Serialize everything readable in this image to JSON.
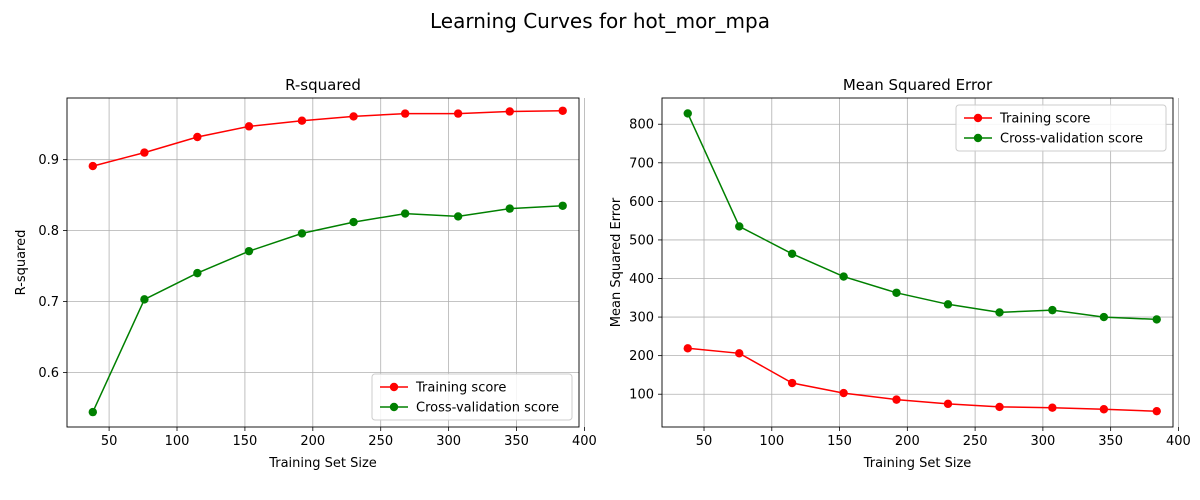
{
  "figure": {
    "title": "Learning Curves for hot_mor_mpa"
  },
  "chart_data": [
    {
      "type": "line",
      "title": "R-squared",
      "xlabel": "Training Set Size",
      "ylabel": "R-squared",
      "xlim": [
        19,
        396
      ],
      "ylim": [
        0.523,
        0.987
      ],
      "xticks": [
        50,
        100,
        150,
        200,
        250,
        300,
        350,
        400
      ],
      "yticks": [
        0.6,
        0.7,
        0.8,
        0.9
      ],
      "ytick_labels": [
        "0.6",
        "0.7",
        "0.8",
        "0.9"
      ],
      "grid": true,
      "legend_position": "lower-right",
      "x": [
        38,
        76,
        115,
        153,
        192,
        230,
        268,
        307,
        345,
        384
      ],
      "series": [
        {
          "name": "Training score",
          "color": "#ff0000",
          "values": [
            0.891,
            0.91,
            0.932,
            0.947,
            0.955,
            0.961,
            0.965,
            0.965,
            0.968,
            0.969
          ]
        },
        {
          "name": "Cross-validation score",
          "color": "#008000",
          "values": [
            0.544,
            0.703,
            0.74,
            0.771,
            0.796,
            0.812,
            0.824,
            0.82,
            0.831,
            0.835
          ]
        }
      ]
    },
    {
      "type": "line",
      "title": "Mean Squared Error",
      "xlabel": "Training Set Size",
      "ylabel": "Mean Squared Error",
      "xlim": [
        19,
        396
      ],
      "ylim": [
        15,
        868
      ],
      "xticks": [
        50,
        100,
        150,
        200,
        250,
        300,
        350,
        400
      ],
      "yticks": [
        100,
        200,
        300,
        400,
        500,
        600,
        700,
        800
      ],
      "ytick_labels": [
        "100",
        "200",
        "300",
        "400",
        "500",
        "600",
        "700",
        "800"
      ],
      "grid": true,
      "legend_position": "upper-right",
      "x": [
        38,
        76,
        115,
        153,
        192,
        230,
        268,
        307,
        345,
        384
      ],
      "series": [
        {
          "name": "Training score",
          "color": "#ff0000",
          "values": [
            219,
            206,
            129,
            103,
            86,
            75,
            67,
            65,
            61,
            56
          ]
        },
        {
          "name": "Cross-validation score",
          "color": "#008000",
          "values": [
            828,
            535,
            464,
            405,
            363,
            333,
            312,
            318,
            300,
            294
          ]
        }
      ]
    }
  ]
}
